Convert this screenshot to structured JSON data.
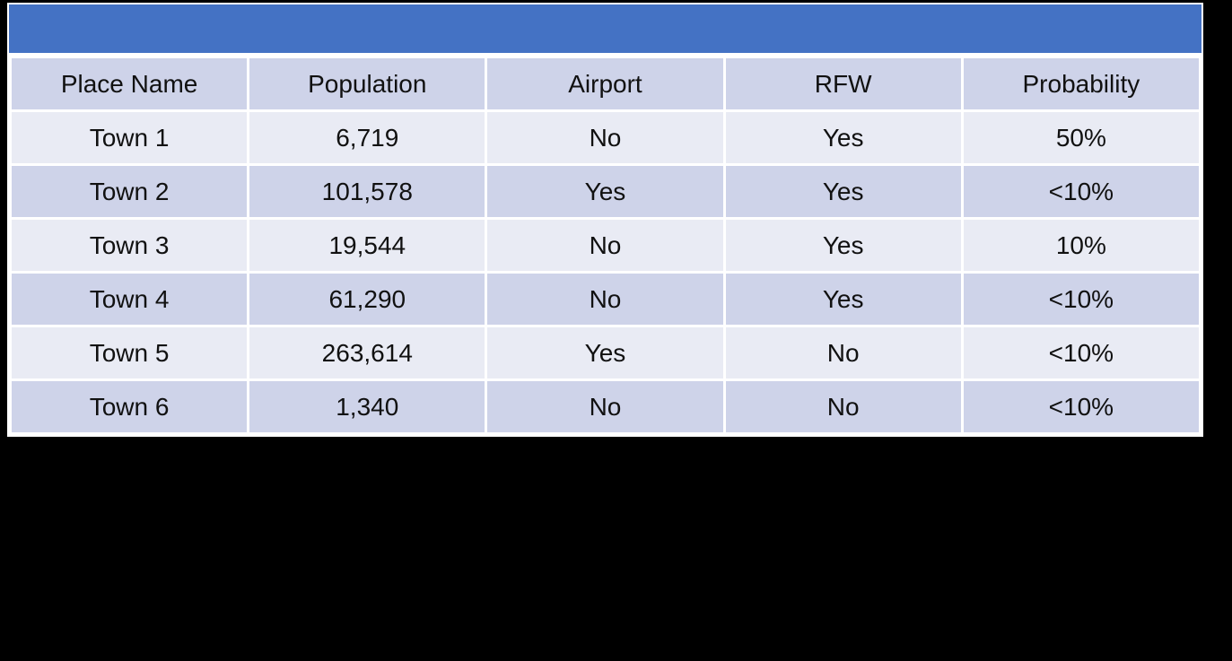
{
  "chart_data": {
    "type": "table",
    "columns": [
      "Place Name",
      "Population",
      "Airport",
      "RFW",
      "Probability"
    ],
    "rows": [
      [
        "Town 1",
        "6,719",
        "No",
        "Yes",
        "50%"
      ],
      [
        "Town 2",
        "101,578",
        "Yes",
        "Yes",
        "<10%"
      ],
      [
        "Town 3",
        "19,544",
        "No",
        "Yes",
        "10%"
      ],
      [
        "Town 4",
        "61,290",
        "No",
        "Yes",
        "<10%"
      ],
      [
        "Town 5",
        "263,614",
        "Yes",
        "No",
        "<10%"
      ],
      [
        "Town 6",
        "1,340",
        "No",
        "No",
        "<10%"
      ]
    ],
    "layout_hints": {
      "header_band_rows": "header and even data rows shaded dark lavender, odd data rows light lavender",
      "title_band_has_no_text": true
    }
  },
  "colors": {
    "title_band": "#4472C4",
    "row_dark": "#CED3E9",
    "row_light": "#E9EBF4",
    "grid": "#FFFFFF",
    "page_bg": "#000000",
    "text": "#111111"
  }
}
